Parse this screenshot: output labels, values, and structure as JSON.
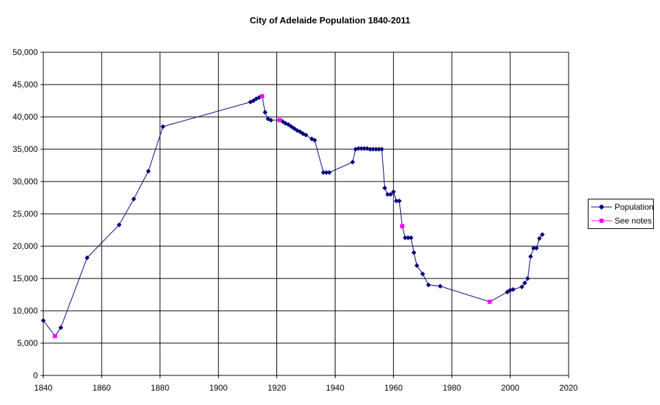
{
  "chart_data": {
    "type": "line",
    "title": "City of Adelaide Population 1840-2011",
    "xlabel": "",
    "ylabel": "",
    "xlim": [
      1840,
      2020
    ],
    "ylim": [
      0,
      50000
    ],
    "xticks": [
      1840,
      1860,
      1880,
      1900,
      1920,
      1940,
      1960,
      1980,
      2000,
      2020
    ],
    "yticks": [
      0,
      5000,
      10000,
      15000,
      20000,
      25000,
      30000,
      35000,
      40000,
      45000,
      50000
    ],
    "ytick_labels": [
      "0",
      "5,000",
      "10,000",
      "15,000",
      "20,000",
      "25,000",
      "30,000",
      "35,000",
      "40,000",
      "45,000",
      "50,000"
    ],
    "grid": true,
    "legend_position": "right",
    "line_color": "#000080",
    "series": [
      {
        "name": "Population",
        "color": "#000080",
        "marker": "diamond",
        "points": [
          [
            1840,
            8500
          ],
          [
            1846,
            7400
          ],
          [
            1855,
            18200
          ],
          [
            1866,
            23300
          ],
          [
            1871,
            27300
          ],
          [
            1876,
            31600
          ],
          [
            1881,
            38500
          ],
          [
            1911,
            42300
          ],
          [
            1912,
            42500
          ],
          [
            1913,
            42800
          ],
          [
            1914,
            43000
          ],
          [
            1916,
            40700
          ],
          [
            1917,
            39700
          ],
          [
            1918,
            39500
          ],
          [
            1922,
            39300
          ],
          [
            1923,
            39000
          ],
          [
            1924,
            38800
          ],
          [
            1925,
            38500
          ],
          [
            1926,
            38200
          ],
          [
            1927,
            37900
          ],
          [
            1928,
            37700
          ],
          [
            1929,
            37400
          ],
          [
            1930,
            37200
          ],
          [
            1932,
            36600
          ],
          [
            1933,
            36400
          ],
          [
            1936,
            31400
          ],
          [
            1937,
            31400
          ],
          [
            1938,
            31400
          ],
          [
            1946,
            33000
          ],
          [
            1947,
            35000
          ],
          [
            1948,
            35100
          ],
          [
            1949,
            35100
          ],
          [
            1950,
            35100
          ],
          [
            1951,
            35100
          ],
          [
            1952,
            35000
          ],
          [
            1953,
            35000
          ],
          [
            1954,
            35000
          ],
          [
            1955,
            35000
          ],
          [
            1956,
            35000
          ],
          [
            1957,
            29000
          ],
          [
            1958,
            28000
          ],
          [
            1959,
            28000
          ],
          [
            1960,
            28400
          ],
          [
            1961,
            27000
          ],
          [
            1962,
            27000
          ],
          [
            1964,
            21300
          ],
          [
            1965,
            21300
          ],
          [
            1966,
            21300
          ],
          [
            1967,
            19000
          ],
          [
            1968,
            17000
          ],
          [
            1970,
            15700
          ],
          [
            1972,
            14000
          ],
          [
            1976,
            13800
          ],
          [
            1999,
            12900
          ],
          [
            2000,
            13200
          ],
          [
            2001,
            13300
          ],
          [
            2004,
            13700
          ],
          [
            2005,
            14300
          ],
          [
            2006,
            15000
          ],
          [
            2007,
            18400
          ],
          [
            2008,
            19700
          ],
          [
            2009,
            19700
          ],
          [
            2010,
            21200
          ],
          [
            2011,
            21800
          ]
        ]
      },
      {
        "name": "See notes",
        "color": "#FF00FF",
        "marker": "square",
        "points": [
          [
            1844,
            6100
          ],
          [
            1915,
            43200
          ],
          [
            1921,
            39500
          ],
          [
            1963,
            23100
          ],
          [
            1993,
            11400
          ]
        ]
      }
    ]
  }
}
